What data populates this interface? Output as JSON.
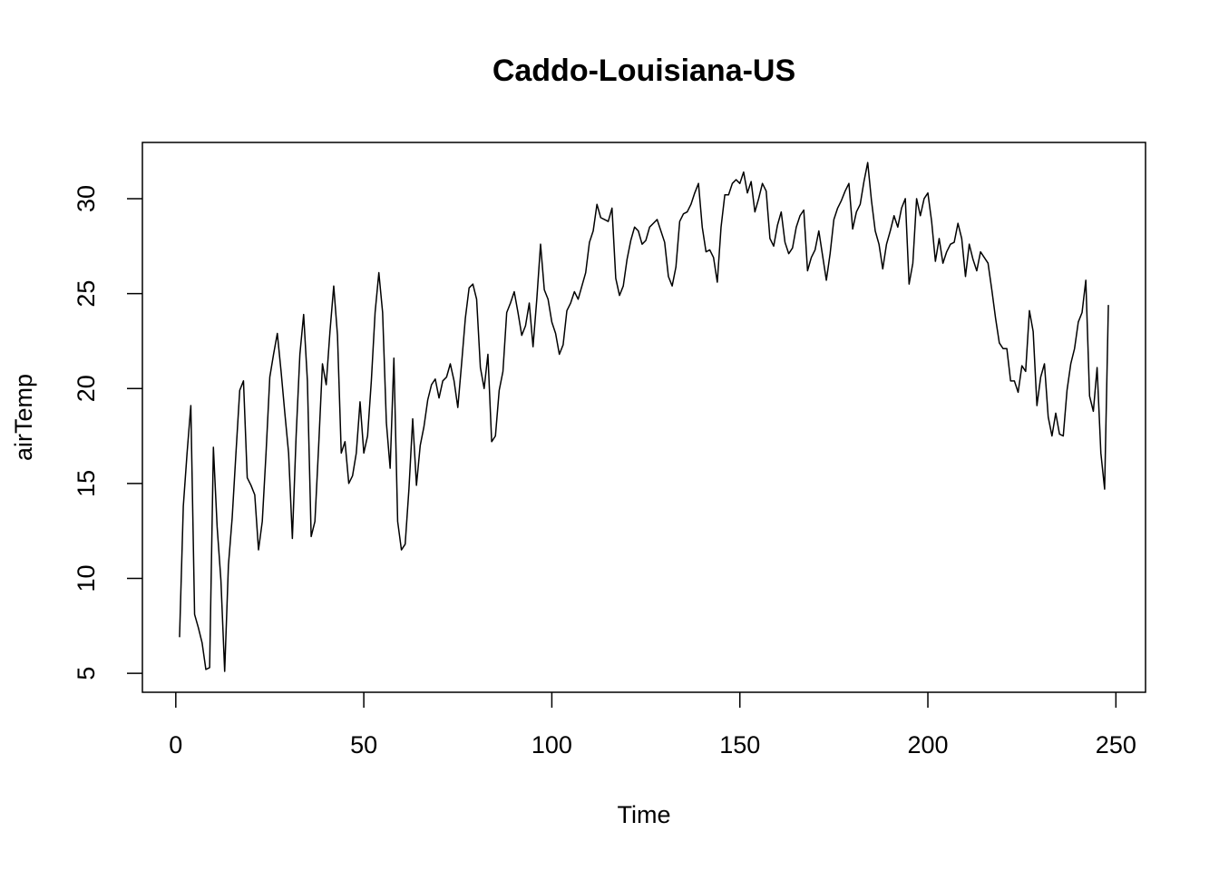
{
  "chart_data": {
    "type": "line",
    "title": "Caddo-Louisiana-US",
    "xlabel": "Time",
    "ylabel": "airTemp",
    "x": [
      1,
      2,
      3,
      4,
      5,
      6,
      7,
      8,
      9,
      10,
      11,
      12,
      13,
      14,
      15,
      16,
      17,
      18,
      19,
      20,
      21,
      22,
      23,
      24,
      25,
      26,
      27,
      28,
      29,
      30,
      31,
      32,
      33,
      34,
      35,
      36,
      37,
      38,
      39,
      40,
      41,
      42,
      43,
      44,
      45,
      46,
      47,
      48,
      49,
      50,
      51,
      52,
      53,
      54,
      55,
      56,
      57,
      58,
      59,
      60,
      61,
      62,
      63,
      64,
      65,
      66,
      67,
      68,
      69,
      70,
      71,
      72,
      73,
      74,
      75,
      76,
      77,
      78,
      79,
      80,
      81,
      82,
      83,
      84,
      85,
      86,
      87,
      88,
      89,
      90,
      91,
      92,
      93,
      94,
      95,
      96,
      97,
      98,
      99,
      100,
      101,
      102,
      103,
      104,
      105,
      106,
      107,
      108,
      109,
      110,
      111,
      112,
      113,
      114,
      115,
      116,
      117,
      118,
      119,
      120,
      121,
      122,
      123,
      124,
      125,
      126,
      127,
      128,
      129,
      130,
      131,
      132,
      133,
      134,
      135,
      136,
      137,
      138,
      139,
      140,
      141,
      142,
      143,
      144,
      145,
      146,
      147,
      148,
      149,
      150,
      151,
      152,
      153,
      154,
      155,
      156,
      157,
      158,
      159,
      160,
      161,
      162,
      163,
      164,
      165,
      166,
      167,
      168,
      169,
      170,
      171,
      172,
      173,
      174,
      175,
      176,
      177,
      178,
      179,
      180,
      181,
      182,
      183,
      184,
      185,
      186,
      187,
      188,
      189,
      190,
      191,
      192,
      193,
      194,
      195,
      196,
      197,
      198,
      199,
      200,
      201,
      202,
      203,
      204,
      205,
      206,
      207,
      208,
      209,
      210,
      211,
      212,
      213,
      214,
      215,
      216,
      217,
      218,
      219,
      220,
      221,
      222,
      223,
      224,
      225,
      226,
      227,
      228,
      229,
      230,
      231,
      232,
      233,
      234,
      235,
      236,
      237,
      238,
      239,
      240,
      241,
      242,
      243,
      244,
      245,
      246,
      247,
      248
    ],
    "series": [
      {
        "name": "airTemp",
        "color": "#000000",
        "values": [
          6.9,
          13.8,
          16.6,
          19.1,
          8.1,
          7.4,
          6.6,
          5.2,
          5.3,
          16.9,
          12.7,
          9.9,
          5.1,
          10.7,
          13.2,
          16.6,
          19.9,
          20.4,
          15.3,
          14.9,
          14.4,
          11.5,
          13.0,
          16.6,
          20.6,
          21.8,
          22.9,
          20.9,
          18.7,
          16.6,
          12.1,
          17.5,
          21.8,
          23.9,
          20.4,
          12.2,
          13.0,
          17.0,
          21.3,
          20.2,
          23.0,
          25.4,
          22.8,
          16.6,
          17.2,
          15.0,
          15.4,
          16.6,
          19.3,
          16.6,
          17.5,
          20.4,
          24.0,
          26.1,
          24.0,
          18.2,
          15.8,
          21.6,
          13.0,
          11.5,
          11.8,
          14.7,
          18.4,
          14.9,
          17.0,
          18.0,
          19.4,
          20.2,
          20.5,
          19.5,
          20.4,
          20.6,
          21.3,
          20.4,
          19.0,
          21.3,
          23.7,
          25.3,
          25.5,
          24.7,
          21.1,
          20.0,
          21.8,
          17.2,
          17.5,
          19.9,
          20.9,
          24.0,
          24.5,
          25.1,
          24.0,
          22.8,
          23.3,
          24.5,
          22.2,
          24.7,
          27.6,
          25.2,
          24.7,
          23.5,
          22.9,
          21.8,
          22.3,
          24.1,
          24.5,
          25.1,
          24.7,
          25.4,
          26.1,
          27.7,
          28.3,
          29.7,
          29.0,
          28.9,
          28.8,
          29.5,
          25.8,
          24.9,
          25.4,
          26.8,
          27.8,
          28.5,
          28.3,
          27.6,
          27.8,
          28.5,
          28.7,
          28.9,
          28.3,
          27.7,
          25.9,
          25.4,
          26.4,
          28.8,
          29.2,
          29.3,
          29.7,
          30.3,
          30.8,
          28.5,
          27.2,
          27.3,
          26.9,
          25.6,
          28.5,
          30.2,
          30.2,
          30.8,
          31.0,
          30.8,
          31.4,
          30.3,
          30.9,
          29.3,
          30.0,
          30.8,
          30.4,
          27.9,
          27.5,
          28.6,
          29.3,
          27.7,
          27.1,
          27.4,
          28.5,
          29.1,
          29.4,
          26.2,
          26.9,
          27.3,
          28.3,
          27.0,
          25.7,
          27.1,
          28.9,
          29.5,
          29.9,
          30.4,
          30.8,
          28.4,
          29.3,
          29.7,
          30.9,
          31.9,
          29.9,
          28.3,
          27.6,
          26.3,
          27.6,
          28.3,
          29.1,
          28.5,
          29.5,
          30.0,
          25.5,
          26.6,
          30.0,
          29.1,
          30.0,
          30.3,
          28.8,
          26.7,
          27.9,
          26.6,
          27.2,
          27.6,
          27.7,
          28.7,
          27.9,
          25.9,
          27.6,
          26.8,
          26.2,
          27.2,
          26.9,
          26.6,
          25.2,
          23.7,
          22.4,
          22.1,
          22.1,
          20.4,
          20.4,
          19.8,
          21.2,
          20.9,
          24.1,
          23.0,
          19.1,
          20.6,
          21.3,
          18.5,
          17.5,
          18.7,
          17.6,
          17.5,
          19.9,
          21.3,
          22.1,
          23.5,
          24.0,
          25.7,
          19.6,
          18.8,
          21.1,
          16.6,
          14.7,
          24.4
        ]
      }
    ],
    "xlim": [
      -8.88,
      257.88
    ],
    "xticks": [
      0,
      50,
      100,
      150,
      200,
      250
    ],
    "ylim": [
      4.0,
      32.96
    ],
    "yticks": [
      5,
      10,
      15,
      20,
      25,
      30
    ]
  }
}
